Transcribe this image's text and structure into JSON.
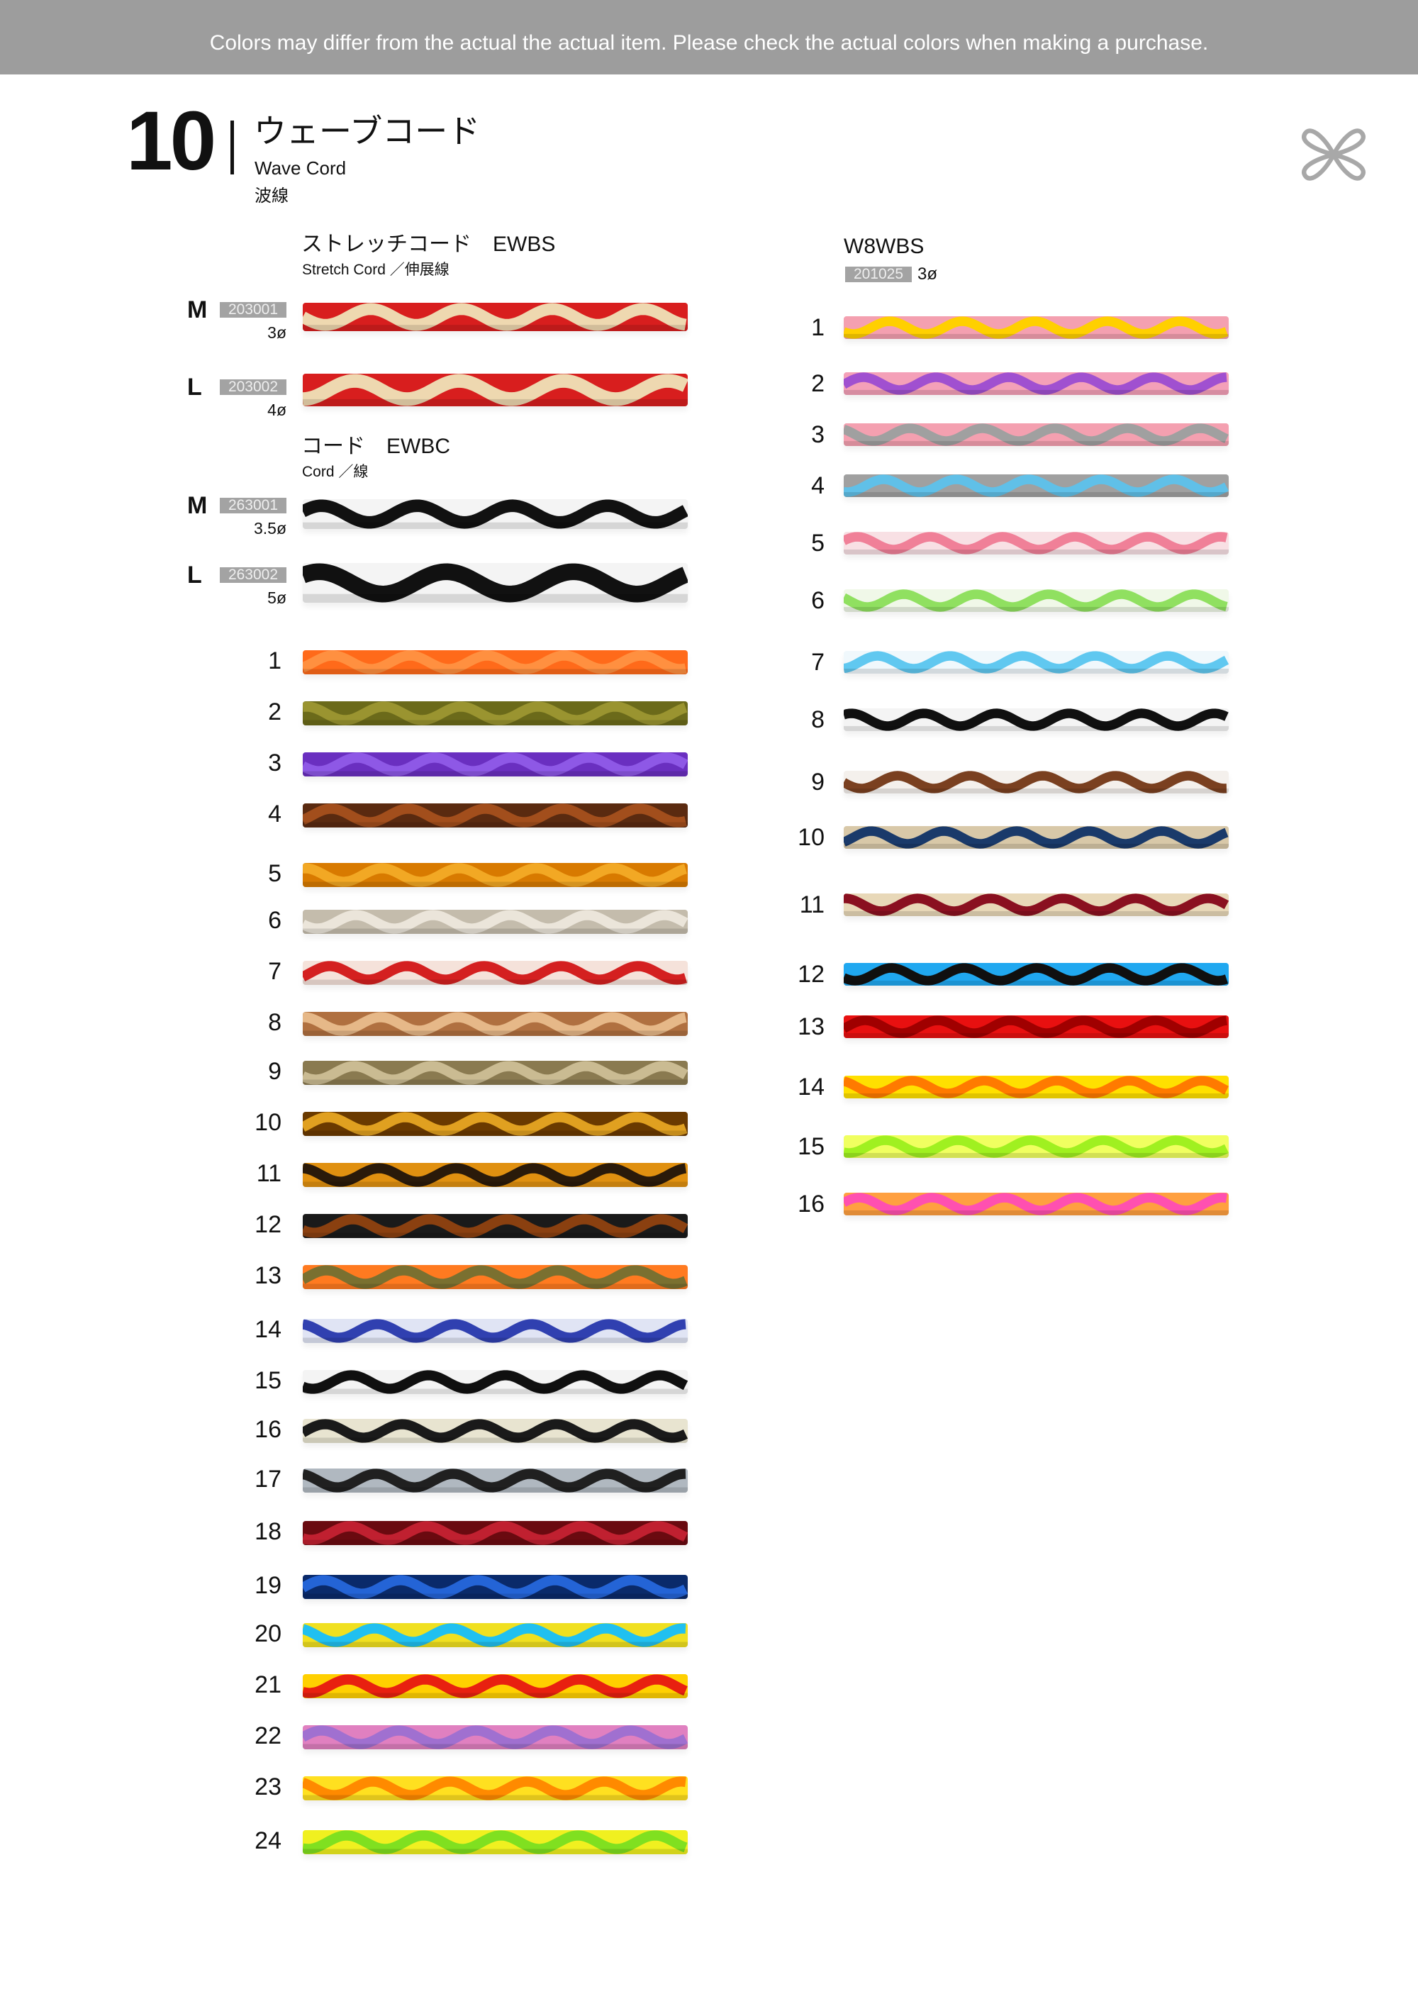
{
  "notice": "Colors may differ from the actual the actual item. Please check the actual colors when making a purchase.",
  "chapter": {
    "number": "10",
    "title_ja": "ウェーブコード",
    "title_en": "Wave Cord",
    "title_zh": "波線",
    "logo_icon": "knot-logo-icon"
  },
  "ewbs": {
    "heading": "ストレッチコード　EWBS",
    "sub": "Stretch Cord ／伸展線",
    "variants": [
      {
        "size": "M",
        "code": "203001",
        "diameter": "3ø",
        "colors": [
          "#d81e1e",
          "#eed8b0"
        ]
      },
      {
        "size": "L",
        "code": "203002",
        "diameter": "4ø",
        "colors": [
          "#d81e1e",
          "#eed8b0"
        ]
      }
    ]
  },
  "ewbc": {
    "heading": "コード　EWBC",
    "sub": "Cord ／線",
    "variants": [
      {
        "size": "M",
        "code": "263001",
        "diameter": "3.5ø",
        "colors": [
          "#f4f4f4",
          "#111111"
        ]
      },
      {
        "size": "L",
        "code": "263002",
        "diameter": "5ø",
        "colors": [
          "#f4f4f4",
          "#111111"
        ]
      }
    ],
    "colors": [
      {
        "no": "1",
        "colors": [
          "#ff6a1a",
          "#ff9040"
        ]
      },
      {
        "no": "2",
        "colors": [
          "#6b6a1a",
          "#9a9430"
        ]
      },
      {
        "no": "3",
        "colors": [
          "#6a2fc0",
          "#8e58e6"
        ]
      },
      {
        "no": "4",
        "colors": [
          "#5a2a10",
          "#a24e1c"
        ]
      },
      {
        "no": "5",
        "colors": [
          "#d87a00",
          "#f2a824"
        ]
      },
      {
        "no": "6",
        "colors": [
          "#c4bcac",
          "#ebe5da"
        ]
      },
      {
        "no": "7",
        "colors": [
          "#f5e2da",
          "#d42020"
        ]
      },
      {
        "no": "8",
        "colors": [
          "#b07040",
          "#e6b888"
        ]
      },
      {
        "no": "9",
        "colors": [
          "#8a7a50",
          "#cabb92"
        ]
      },
      {
        "no": "10",
        "colors": [
          "#6a3a00",
          "#e0a020"
        ]
      },
      {
        "no": "11",
        "colors": [
          "#e09010",
          "#2a1a0a"
        ]
      },
      {
        "no": "12",
        "colors": [
          "#1a1a1a",
          "#8a4010"
        ]
      },
      {
        "no": "13",
        "colors": [
          "#ff7a20",
          "#7a7030"
        ]
      },
      {
        "no": "14",
        "colors": [
          "#e0e4f4",
          "#3040b0"
        ]
      },
      {
        "no": "15",
        "colors": [
          "#f4f4f4",
          "#101010"
        ]
      },
      {
        "no": "16",
        "colors": [
          "#e8e4d0",
          "#1a1a1a"
        ]
      },
      {
        "no": "17",
        "colors": [
          "#b0b8c0",
          "#202020"
        ]
      },
      {
        "no": "18",
        "colors": [
          "#6a0a10",
          "#c02030"
        ]
      },
      {
        "no": "19",
        "colors": [
          "#0a2a6a",
          "#2464d6"
        ]
      },
      {
        "no": "20",
        "colors": [
          "#f0e020",
          "#20c0f0"
        ]
      },
      {
        "no": "21",
        "colors": [
          "#ffd000",
          "#e82010"
        ]
      },
      {
        "no": "22",
        "colors": [
          "#e080c0",
          "#a070d0"
        ]
      },
      {
        "no": "23",
        "colors": [
          "#ffe020",
          "#ff8a00"
        ]
      },
      {
        "no": "24",
        "colors": [
          "#f0f020",
          "#80e020"
        ]
      }
    ]
  },
  "w8wbs": {
    "heading": "W8WBS",
    "code": "201025",
    "diameter": "3ø",
    "colors": [
      {
        "no": "1",
        "colors": [
          "#f4a0b0",
          "#ffd000"
        ]
      },
      {
        "no": "2",
        "colors": [
          "#f4a0b8",
          "#a050d0"
        ]
      },
      {
        "no": "3",
        "colors": [
          "#f4a0b0",
          "#a0a0a0"
        ]
      },
      {
        "no": "4",
        "colors": [
          "#a0a0a0",
          "#60c0e8"
        ]
      },
      {
        "no": "5",
        "colors": [
          "#f8e0e4",
          "#f08098"
        ]
      },
      {
        "no": "6",
        "colors": [
          "#f0f8e8",
          "#90e060"
        ]
      },
      {
        "no": "7",
        "colors": [
          "#f0f8fc",
          "#60c8f0"
        ]
      },
      {
        "no": "8",
        "colors": [
          "#f4f4f4",
          "#101010"
        ]
      },
      {
        "no": "9",
        "colors": [
          "#f4f0ec",
          "#7a4020"
        ]
      },
      {
        "no": "10",
        "colors": [
          "#d8c8a8",
          "#1a3a6a"
        ]
      },
      {
        "no": "11",
        "colors": [
          "#e8d8b8",
          "#8a1020"
        ]
      },
      {
        "no": "12",
        "colors": [
          "#20a8f0",
          "#101010"
        ]
      },
      {
        "no": "13",
        "colors": [
          "#e81010",
          "#a00000"
        ]
      },
      {
        "no": "14",
        "colors": [
          "#ffe000",
          "#ff7a00"
        ]
      },
      {
        "no": "15",
        "colors": [
          "#f0ff60",
          "#a0f020"
        ]
      },
      {
        "no": "16",
        "colors": [
          "#ffa040",
          "#ff50b0"
        ]
      }
    ]
  }
}
